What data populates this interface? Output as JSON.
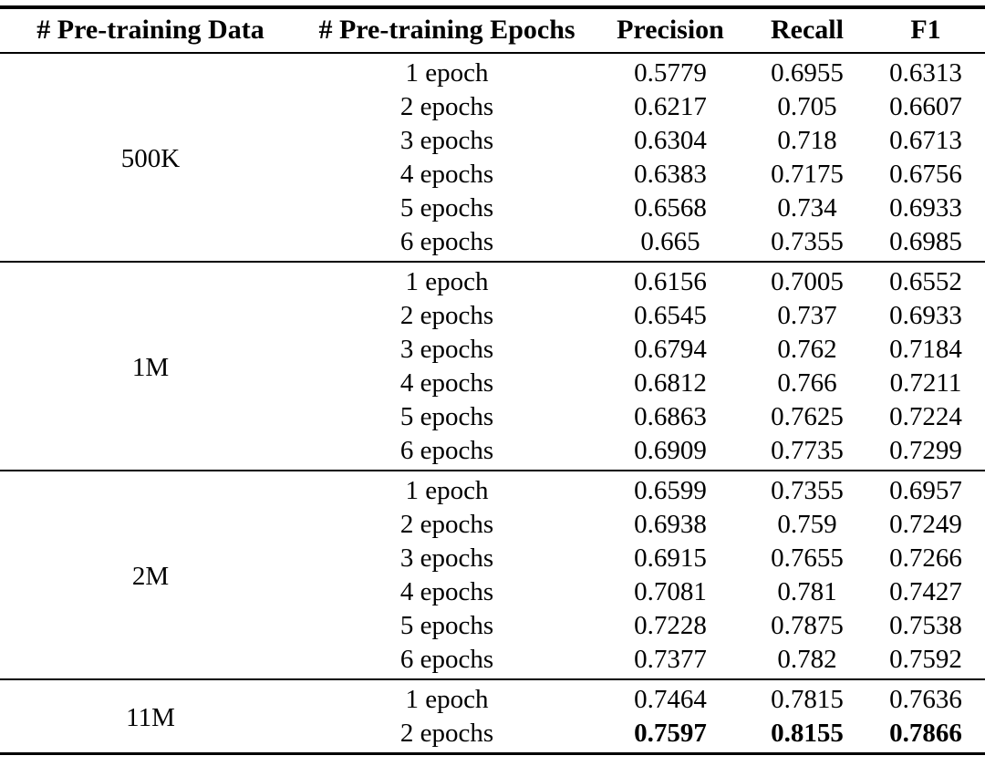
{
  "page": {
    "background_color": "#ffffff",
    "text_color": "#000000"
  },
  "table": {
    "columns": [
      "# Pre-training Data",
      "# Pre-training Epochs",
      "Precision",
      "Recall",
      "F1"
    ],
    "groups": [
      {
        "data_size": "500K",
        "rows": [
          {
            "epochs": "1 epoch",
            "precision": "0.5779",
            "recall": "0.6955",
            "f1": "0.6313",
            "bold": false
          },
          {
            "epochs": "2 epochs",
            "precision": "0.6217",
            "recall": "0.705",
            "f1": "0.6607",
            "bold": false
          },
          {
            "epochs": "3 epochs",
            "precision": "0.6304",
            "recall": "0.718",
            "f1": "0.6713",
            "bold": false
          },
          {
            "epochs": "4 epochs",
            "precision": "0.6383",
            "recall": "0.7175",
            "f1": "0.6756",
            "bold": false
          },
          {
            "epochs": "5 epochs",
            "precision": "0.6568",
            "recall": "0.734",
            "f1": "0.6933",
            "bold": false
          },
          {
            "epochs": "6 epochs",
            "precision": "0.665",
            "recall": "0.7355",
            "f1": "0.6985",
            "bold": false
          }
        ]
      },
      {
        "data_size": "1M",
        "rows": [
          {
            "epochs": "1 epoch",
            "precision": "0.6156",
            "recall": "0.7005",
            "f1": "0.6552",
            "bold": false
          },
          {
            "epochs": "2 epochs",
            "precision": "0.6545",
            "recall": "0.737",
            "f1": "0.6933",
            "bold": false
          },
          {
            "epochs": "3 epochs",
            "precision": "0.6794",
            "recall": "0.762",
            "f1": "0.7184",
            "bold": false
          },
          {
            "epochs": "4 epochs",
            "precision": "0.6812",
            "recall": "0.766",
            "f1": "0.7211",
            "bold": false
          },
          {
            "epochs": "5 epochs",
            "precision": "0.6863",
            "recall": "0.7625",
            "f1": "0.7224",
            "bold": false
          },
          {
            "epochs": "6 epochs",
            "precision": "0.6909",
            "recall": "0.7735",
            "f1": "0.7299",
            "bold": false
          }
        ]
      },
      {
        "data_size": "2M",
        "rows": [
          {
            "epochs": "1 epoch",
            "precision": "0.6599",
            "recall": "0.7355",
            "f1": "0.6957",
            "bold": false
          },
          {
            "epochs": "2 epochs",
            "precision": "0.6938",
            "recall": "0.759",
            "f1": "0.7249",
            "bold": false
          },
          {
            "epochs": "3 epochs",
            "precision": "0.6915",
            "recall": "0.7655",
            "f1": "0.7266",
            "bold": false
          },
          {
            "epochs": "4 epochs",
            "precision": "0.7081",
            "recall": "0.781",
            "f1": "0.7427",
            "bold": false
          },
          {
            "epochs": "5 epochs",
            "precision": "0.7228",
            "recall": "0.7875",
            "f1": "0.7538",
            "bold": false
          },
          {
            "epochs": "6 epochs",
            "precision": "0.7377",
            "recall": "0.782",
            "f1": "0.7592",
            "bold": false
          }
        ]
      },
      {
        "data_size": "11M",
        "rows": [
          {
            "epochs": "1 epoch",
            "precision": "0.7464",
            "recall": "0.7815",
            "f1": "0.7636",
            "bold": false
          },
          {
            "epochs": "2 epochs",
            "precision": "0.7597",
            "recall": "0.8155",
            "f1": "0.7866",
            "bold": true
          }
        ]
      }
    ]
  }
}
